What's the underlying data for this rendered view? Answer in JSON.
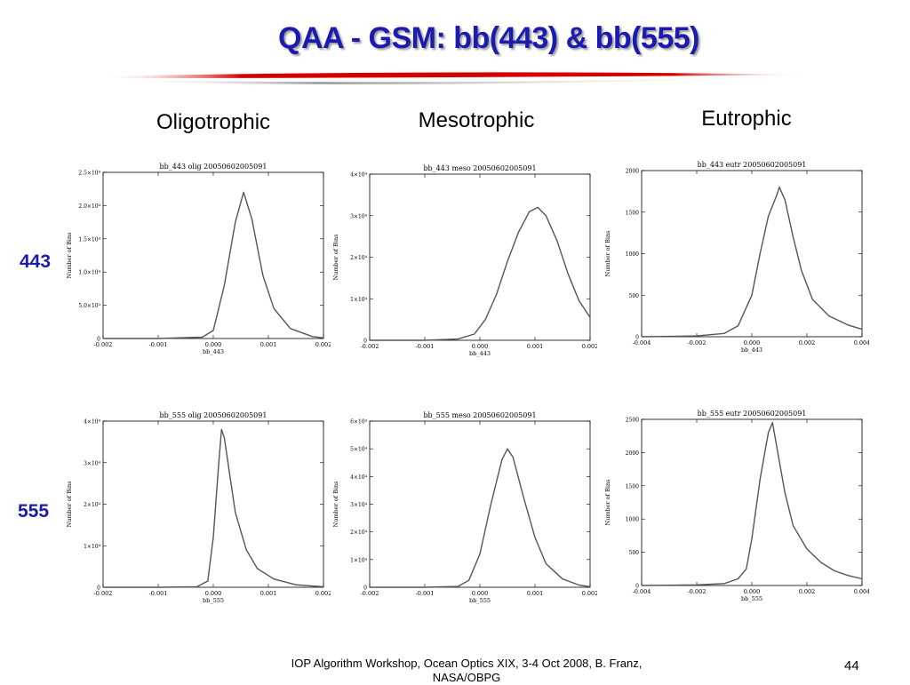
{
  "title": "QAA - GSM: bb(443) & bb(555)",
  "columns": [
    "Oligotrophic",
    "Mesotrophic",
    "Eutrophic"
  ],
  "rows": [
    "443",
    "555"
  ],
  "footer": "IOP Algorithm Workshop, Ocean Optics XIX, 3-4 Oct 2008, B. Franz, NASA/OBPG",
  "page_number": "44",
  "colors": {
    "title": "#1b1bb0",
    "row_label": "#1b1bb0",
    "swoosh": "#d40000",
    "curve": "#555555"
  },
  "chart_data": [
    {
      "type": "line",
      "title": "bb_443 olig 20050602005091",
      "xlabel": "bb_443",
      "ylabel": "Number of Bins",
      "xlim": [
        -0.002,
        0.002
      ],
      "ylim": [
        0,
        25000
      ],
      "xticks": [
        -0.002,
        -0.001,
        0.0,
        0.001,
        0.002
      ],
      "xtick_labels": [
        "-0.002",
        "-0.001",
        "0.000",
        "0.001",
        "0.002"
      ],
      "yticks": [
        0,
        5000,
        10000,
        15000,
        20000,
        25000
      ],
      "ytick_labels": [
        "0",
        "5.0×10³",
        "1.0×10⁴",
        "1.5×10⁴",
        "2.0×10⁴",
        "2.5×10⁴"
      ],
      "grid": false,
      "x": [
        -0.002,
        -0.001,
        -0.0002,
        0.0,
        0.0002,
        0.0004,
        0.00055,
        0.0007,
        0.0009,
        0.0011,
        0.0014,
        0.0018,
        0.002
      ],
      "y": [
        0,
        0,
        200,
        1200,
        8000,
        17500,
        22000,
        18000,
        9500,
        4500,
        1500,
        300,
        100
      ]
    },
    {
      "type": "line",
      "title": "bb_443 meso 20050602005091",
      "xlabel": "bb_443",
      "ylabel": "Number of Bins",
      "xlim": [
        -0.002,
        0.002
      ],
      "ylim": [
        0,
        40000
      ],
      "xticks": [
        -0.002,
        -0.001,
        0.0,
        0.001,
        0.002
      ],
      "xtick_labels": [
        "-0.002",
        "-0.001",
        "0.000",
        "0.001",
        "0.002"
      ],
      "yticks": [
        0,
        10000,
        20000,
        30000,
        40000
      ],
      "ytick_labels": [
        "0",
        "1×10⁴",
        "2×10⁴",
        "3×10⁴",
        "4×10⁴"
      ],
      "grid": false,
      "x": [
        -0.002,
        -0.001,
        -0.0004,
        -0.0001,
        0.0001,
        0.0003,
        0.0005,
        0.0007,
        0.0009,
        0.00105,
        0.0012,
        0.0014,
        0.0016,
        0.0018,
        0.002
      ],
      "y": [
        0,
        0,
        300,
        1500,
        5000,
        11000,
        19000,
        26000,
        31000,
        32000,
        30000,
        24000,
        16000,
        9500,
        5500
      ]
    },
    {
      "type": "line",
      "title": "bb_443 eutr 20050602005091",
      "xlabel": "bb_443",
      "ylabel": "Number of Bins",
      "xlim": [
        -0.004,
        0.004
      ],
      "ylim": [
        0,
        2000
      ],
      "xticks": [
        -0.004,
        -0.002,
        0.0,
        0.002,
        0.004
      ],
      "xtick_labels": [
        "-0.004",
        "-0.002",
        "0.000",
        "0.002",
        "0.004"
      ],
      "yticks": [
        0,
        500,
        1000,
        1500,
        2000
      ],
      "ytick_labels": [
        "0",
        "500",
        "1000",
        "1500",
        "2000"
      ],
      "grid": false,
      "x": [
        -0.004,
        -0.002,
        -0.001,
        -0.0005,
        0.0,
        0.0003,
        0.0006,
        0.0009,
        0.001,
        0.0012,
        0.0015,
        0.0018,
        0.0022,
        0.0028,
        0.0035,
        0.004
      ],
      "y": [
        0,
        10,
        40,
        130,
        500,
        1000,
        1450,
        1700,
        1800,
        1650,
        1200,
        800,
        450,
        250,
        140,
        90
      ]
    },
    {
      "type": "line",
      "title": "bb_555 olig 20050602005091",
      "xlabel": "bb_555",
      "ylabel": "Number of Bins",
      "xlim": [
        -0.002,
        0.002
      ],
      "ylim": [
        0,
        40000
      ],
      "xticks": [
        -0.002,
        -0.001,
        0.0,
        0.001,
        0.002
      ],
      "xtick_labels": [
        "-0.002",
        "-0.001",
        "0.000",
        "0.001",
        "0.002"
      ],
      "yticks": [
        0,
        10000,
        20000,
        30000,
        40000
      ],
      "ytick_labels": [
        "0",
        "1×10⁴",
        "2×10⁴",
        "3×10⁴",
        "4×10⁴"
      ],
      "grid": false,
      "x": [
        -0.002,
        -0.001,
        -0.0003,
        -0.0001,
        0.0,
        0.0001,
        0.00015,
        0.0002,
        0.0003,
        0.0004,
        0.0006,
        0.0008,
        0.0011,
        0.0015,
        0.002
      ],
      "y": [
        0,
        0,
        100,
        1500,
        12000,
        30000,
        38000,
        36000,
        27000,
        18000,
        9000,
        4500,
        2000,
        600,
        100
      ]
    },
    {
      "type": "line",
      "title": "bb_555 meso 20050602005091",
      "xlabel": "bb_555",
      "ylabel": "Number of Bins",
      "xlim": [
        -0.002,
        0.002
      ],
      "ylim": [
        0,
        60000
      ],
      "xticks": [
        -0.002,
        -0.001,
        0.0,
        0.001,
        0.002
      ],
      "xtick_labels": [
        "-0.002",
        "-0.001",
        "0.000",
        "0.001",
        "0.002"
      ],
      "yticks": [
        0,
        10000,
        20000,
        30000,
        40000,
        50000,
        60000
      ],
      "ytick_labels": [
        "0",
        "1×10⁴",
        "2×10⁴",
        "3×10⁴",
        "4×10⁴",
        "5×10⁴",
        "6×10⁴"
      ],
      "grid": false,
      "x": [
        -0.002,
        -0.001,
        -0.0004,
        -0.0002,
        0.0,
        0.0002,
        0.0004,
        0.0005,
        0.0006,
        0.0008,
        0.001,
        0.0012,
        0.0015,
        0.0018,
        0.002
      ],
      "y": [
        0,
        0,
        300,
        2500,
        12000,
        30000,
        46000,
        50000,
        47000,
        32000,
        18000,
        8500,
        3000,
        800,
        200
      ]
    },
    {
      "type": "line",
      "title": "bb_555 eutr 20050602005091",
      "xlabel": "bb_555",
      "ylabel": "Number of Bins",
      "xlim": [
        -0.004,
        0.004
      ],
      "ylim": [
        0,
        2500
      ],
      "xticks": [
        -0.004,
        -0.002,
        0.0,
        0.002,
        0.004
      ],
      "xtick_labels": [
        "-0.004",
        "-0.002",
        "0.000",
        "0.002",
        "0.004"
      ],
      "yticks": [
        0,
        500,
        1000,
        1500,
        2000,
        2500
      ],
      "ytick_labels": [
        "0",
        "500",
        "1000",
        "1500",
        "2000",
        "2500"
      ],
      "grid": false,
      "x": [
        -0.004,
        -0.002,
        -0.001,
        -0.0005,
        -0.0002,
        0.0,
        0.0003,
        0.0006,
        0.00075,
        0.0009,
        0.0012,
        0.0015,
        0.002,
        0.0025,
        0.003,
        0.0035,
        0.004
      ],
      "y": [
        0,
        10,
        30,
        100,
        250,
        700,
        1600,
        2300,
        2450,
        2100,
        1400,
        900,
        550,
        350,
        220,
        150,
        100
      ]
    }
  ]
}
